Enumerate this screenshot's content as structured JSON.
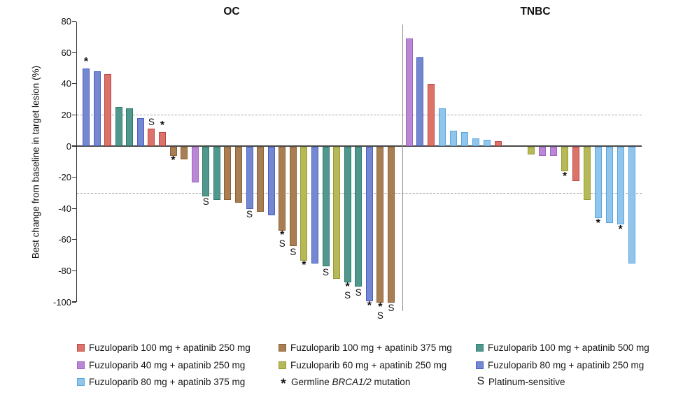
{
  "chart_data": {
    "type": "bar",
    "variant": "waterfall",
    "title": "",
    "ylabel": "Best change from baseline in target lesion (%)",
    "ylim": [
      -100,
      80
    ],
    "yticks": [
      80,
      60,
      40,
      20,
      0,
      -20,
      -40,
      -60,
      -80,
      -100
    ],
    "reference_lines": [
      20,
      -30
    ],
    "grid": false,
    "groups": {
      "g1": {
        "label": "Fuzuloparib 100 mg + apatinib 250 mg",
        "fill": "#DC736B",
        "stroke": "#BE4742"
      },
      "g2": {
        "label": "Fuzuloparib 100 mg + apatinib 375 mg",
        "fill": "#A87E52",
        "stroke": "#8A6136"
      },
      "g3": {
        "label": "Fuzuloparib 100 mg + apatinib 500 mg",
        "fill": "#50988D",
        "stroke": "#2E7A6C"
      },
      "g4": {
        "label": "Fuzuloparib 40 mg + apatinib 250 mg",
        "fill": "#B987D5",
        "stroke": "#A264C4"
      },
      "g5": {
        "label": "Fuzuloparib 60 mg + apatinib 250 mg",
        "fill": "#B6B957",
        "stroke": "#9A9C33"
      },
      "g6": {
        "label": "Fuzuloparib 80 mg + apatinib 250 mg",
        "fill": "#7388D1",
        "stroke": "#4A5FC1"
      },
      "g7": {
        "label": "Fuzuloparib 80 mg + apatinib 375 mg",
        "fill": "#92C5EC",
        "stroke": "#57A7E0"
      }
    },
    "markers": {
      "brca": {
        "symbol": "*",
        "label_pre": "Germline ",
        "label_italic": "BRCA1/2",
        "label_post": " mutation"
      },
      "platinum": {
        "symbol": "S",
        "label": "Platinum-sensitive"
      }
    },
    "panels": [
      {
        "title": "OC",
        "bars": [
          {
            "value": 50,
            "group": "g6",
            "marks": [
              "brca"
            ]
          },
          {
            "value": 48,
            "group": "g6",
            "marks": []
          },
          {
            "value": 46,
            "group": "g1",
            "marks": []
          },
          {
            "value": 25,
            "group": "g3",
            "marks": []
          },
          {
            "value": 24,
            "group": "g3",
            "marks": []
          },
          {
            "value": 18,
            "group": "g6",
            "marks": []
          },
          {
            "value": 11,
            "group": "g1",
            "marks": [
              "platinum"
            ]
          },
          {
            "value": 9,
            "group": "g1",
            "marks": [
              "brca"
            ]
          },
          {
            "value": -6,
            "group": "g2",
            "marks": [
              "brca"
            ]
          },
          {
            "value": -8,
            "group": "g2",
            "marks": []
          },
          {
            "value": -23,
            "group": "g4",
            "marks": []
          },
          {
            "value": -32,
            "group": "g3",
            "marks": [
              "platinum"
            ]
          },
          {
            "value": -34,
            "group": "g3",
            "marks": []
          },
          {
            "value": -34,
            "group": "g2",
            "marks": []
          },
          {
            "value": -36,
            "group": "g2",
            "marks": []
          },
          {
            "value": -40,
            "group": "g6",
            "marks": [
              "platinum"
            ]
          },
          {
            "value": -42,
            "group": "g2",
            "marks": []
          },
          {
            "value": -44,
            "group": "g6",
            "marks": []
          },
          {
            "value": -54,
            "group": "g2",
            "marks": [
              "brca",
              "platinum"
            ]
          },
          {
            "value": -64,
            "group": "g2",
            "marks": [
              "platinum"
            ]
          },
          {
            "value": -73,
            "group": "g5",
            "marks": [
              "brca"
            ]
          },
          {
            "value": -75,
            "group": "g6",
            "marks": []
          },
          {
            "value": -77,
            "group": "g3",
            "marks": [
              "platinum"
            ]
          },
          {
            "value": -85,
            "group": "g5",
            "marks": []
          },
          {
            "value": -87,
            "group": "g3",
            "marks": [
              "brca",
              "platinum"
            ]
          },
          {
            "value": -90,
            "group": "g3",
            "marks": [
              "platinum"
            ]
          },
          {
            "value": -99,
            "group": "g6",
            "marks": [
              "brca"
            ]
          },
          {
            "value": -100,
            "group": "g2",
            "marks": [
              "brca",
              "platinum"
            ]
          },
          {
            "value": -100,
            "group": "g2",
            "marks": [
              "platinum"
            ]
          }
        ]
      },
      {
        "title": "TNBC",
        "bars": [
          {
            "value": 69,
            "group": "g4",
            "marks": []
          },
          {
            "value": 57,
            "group": "g6",
            "marks": []
          },
          {
            "value": 40,
            "group": "g1",
            "marks": []
          },
          {
            "value": 24,
            "group": "g7",
            "marks": []
          },
          {
            "value": 10,
            "group": "g7",
            "marks": []
          },
          {
            "value": 9,
            "group": "g7",
            "marks": []
          },
          {
            "value": 5,
            "group": "g7",
            "marks": []
          },
          {
            "value": 4,
            "group": "g7",
            "marks": []
          },
          {
            "value": 3,
            "group": "g1",
            "marks": []
          },
          {
            "value": 0,
            "group": null,
            "marks": []
          },
          {
            "value": 0,
            "group": null,
            "marks": []
          },
          {
            "value": -5,
            "group": "g5",
            "marks": []
          },
          {
            "value": -6,
            "group": "g4",
            "marks": []
          },
          {
            "value": -6,
            "group": "g4",
            "marks": []
          },
          {
            "value": -16,
            "group": "g5",
            "marks": [
              "brca"
            ]
          },
          {
            "value": -22,
            "group": "g1",
            "marks": []
          },
          {
            "value": -34,
            "group": "g5",
            "marks": []
          },
          {
            "value": -46,
            "group": "g7",
            "marks": [
              "brca"
            ]
          },
          {
            "value": -49,
            "group": "g7",
            "marks": []
          },
          {
            "value": -50,
            "group": "g7",
            "marks": [
              "brca"
            ]
          },
          {
            "value": -75,
            "group": "g7",
            "marks": []
          }
        ]
      }
    ],
    "legend": {
      "columns": [
        [
          "g1",
          "g4",
          "g7"
        ],
        [
          "g2",
          "g5",
          "marker:brca"
        ],
        [
          "g3",
          "g6",
          "marker:platinum"
        ]
      ]
    }
  }
}
